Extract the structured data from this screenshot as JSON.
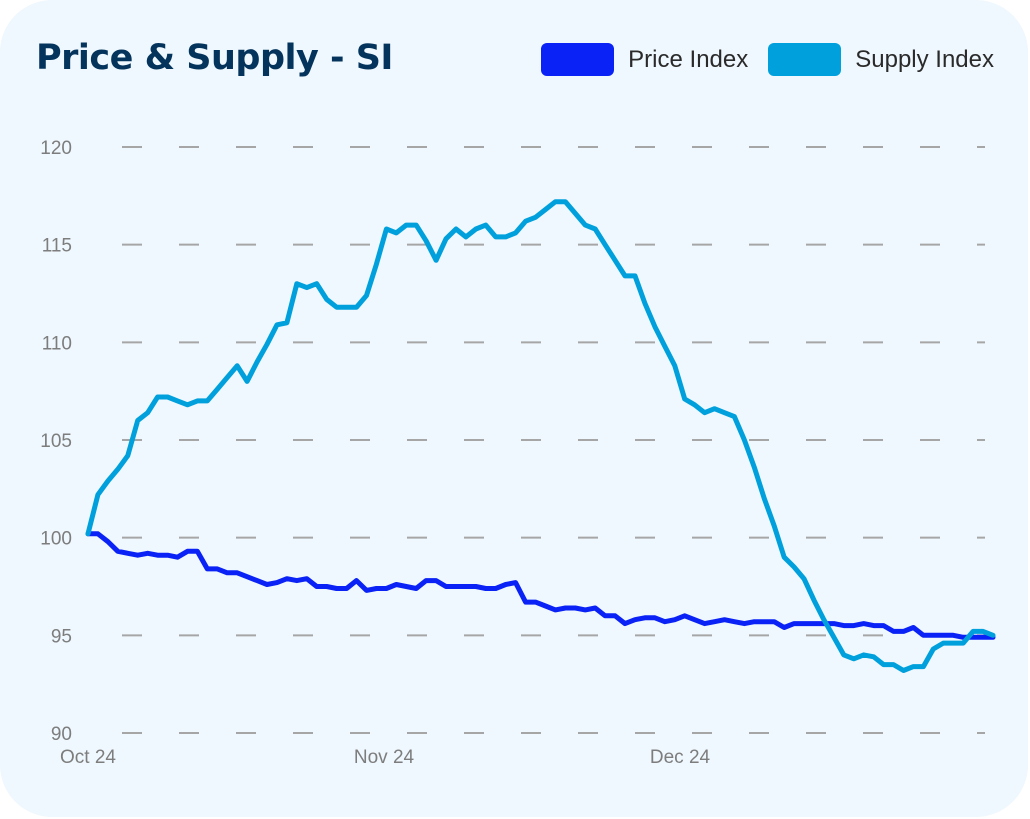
{
  "title": "Price & Supply - SI",
  "colors": {
    "background": "#eff8fe",
    "title": "#04345c",
    "price": "#0a22f5",
    "supply": "#00a0dc",
    "grid": "#a6a6a6",
    "tick": "#7d7d7d"
  },
  "chart_data": {
    "type": "line",
    "title": "Price & Supply - SI",
    "xlabel": "",
    "ylabel": "",
    "ylim": [
      90,
      120
    ],
    "yticks": [
      "90",
      "95",
      "100",
      "105",
      "110",
      "115",
      "120"
    ],
    "xticks": [
      "Oct 24",
      "Nov 24",
      "Dec 24"
    ],
    "grid": "horizontal-dashed",
    "legend_position": "top-right",
    "x_days": [
      0,
      1,
      2,
      3,
      4,
      5,
      6,
      7,
      8,
      9,
      10,
      11,
      12,
      13,
      14,
      15,
      16,
      17,
      18,
      19,
      20,
      21,
      22,
      23,
      24,
      25,
      26,
      27,
      28,
      29,
      30,
      31,
      32,
      33,
      34,
      35,
      36,
      37,
      38,
      39,
      40,
      41,
      42,
      43,
      44,
      45,
      46,
      47,
      48,
      49,
      50,
      51,
      52,
      53,
      54,
      55,
      56,
      57,
      58,
      59,
      60,
      61,
      62,
      63,
      64,
      65,
      66,
      67,
      68,
      69,
      70,
      71,
      72,
      73,
      74,
      75,
      76,
      77,
      78,
      79,
      80,
      81,
      82,
      83,
      84,
      85,
      86,
      87,
      88,
      89,
      90,
      91
    ],
    "series": [
      {
        "name": "Price Index",
        "values": [
          100.2,
          100.2,
          99.8,
          99.3,
          99.2,
          99.1,
          99.2,
          99.1,
          99.1,
          99.0,
          99.3,
          99.3,
          98.4,
          98.4,
          98.2,
          98.2,
          98.0,
          97.8,
          97.6,
          97.7,
          97.9,
          97.8,
          97.9,
          97.5,
          97.5,
          97.4,
          97.4,
          97.8,
          97.3,
          97.4,
          97.4,
          97.6,
          97.5,
          97.4,
          97.8,
          97.8,
          97.5,
          97.5,
          97.5,
          97.5,
          97.4,
          97.4,
          97.6,
          97.7,
          96.7,
          96.7,
          96.5,
          96.3,
          96.4,
          96.4,
          96.3,
          96.4,
          96.0,
          96.0,
          95.6,
          95.8,
          95.9,
          95.9,
          95.7,
          95.8,
          96.0,
          95.8,
          95.6,
          95.7,
          95.8,
          95.7,
          95.6,
          95.7,
          95.7,
          95.7,
          95.4,
          95.6,
          95.6,
          95.6,
          95.6,
          95.6,
          95.5,
          95.5,
          95.6,
          95.5,
          95.5,
          95.2,
          95.2,
          95.4,
          95.0,
          95.0,
          95.0,
          95.0,
          94.9,
          94.9,
          94.9,
          94.9
        ],
        "color": "#0a22f5"
      },
      {
        "name": "Supply Index",
        "values": [
          100.2,
          102.2,
          102.9,
          103.5,
          104.2,
          106.0,
          106.4,
          107.2,
          107.2,
          107.0,
          106.8,
          107.0,
          107.0,
          107.6,
          108.2,
          108.8,
          108.0,
          109.0,
          109.9,
          110.9,
          111.0,
          113.0,
          112.8,
          113.0,
          112.2,
          111.8,
          111.8,
          111.8,
          112.4,
          114.0,
          115.8,
          115.6,
          116.0,
          116.0,
          115.2,
          114.2,
          115.3,
          115.8,
          115.4,
          115.8,
          116.0,
          115.4,
          115.4,
          115.6,
          116.2,
          116.4,
          116.8,
          117.2,
          117.2,
          116.6,
          116.0,
          115.8,
          115.0,
          114.2,
          113.4,
          113.4,
          112.0,
          110.8,
          109.8,
          108.8,
          107.1,
          106.8,
          106.4,
          106.6,
          106.4,
          106.2,
          105.0,
          103.6,
          102.0,
          100.6,
          99.0,
          98.5,
          97.9,
          96.8,
          95.8,
          94.9,
          94.0,
          93.8,
          94.0,
          93.9,
          93.5,
          93.5,
          93.2,
          93.4,
          93.4,
          94.3,
          94.6,
          94.6,
          94.6,
          95.2,
          95.2,
          95.0
        ],
        "color": "#00a0dc"
      }
    ]
  }
}
